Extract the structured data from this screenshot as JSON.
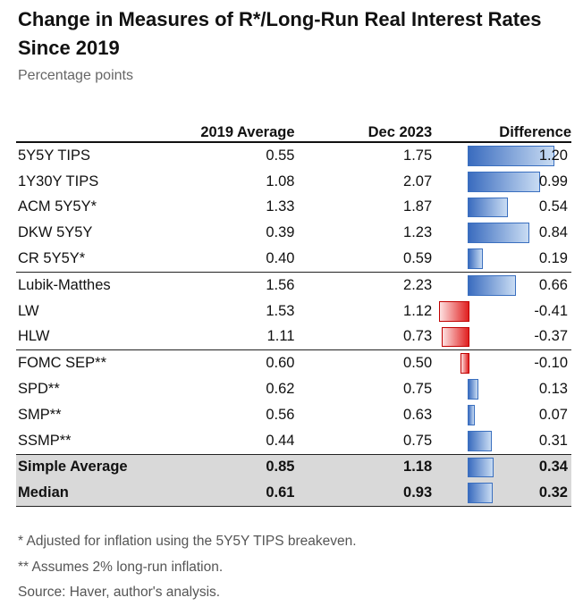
{
  "title": "Change in Measures of R*/Long-Run Real Interest Rates Since 2019",
  "subtitle": "Percentage points",
  "colors": {
    "positive_bar": "#3a6cbf",
    "negative_bar": "#e02020",
    "summary_fill": "#d9d9d9"
  },
  "chart_data": {
    "type": "table",
    "columns": [
      "",
      "2019 Average",
      "Dec 2023",
      "Difference"
    ],
    "rows": [
      {
        "label": "5Y5Y TIPS",
        "avg2019": "0.55",
        "dec2023": "1.75",
        "diff": "1.20",
        "diff_value": 1.2
      },
      {
        "label": "1Y30Y TIPS",
        "avg2019": "1.08",
        "dec2023": "2.07",
        "diff": "0.99",
        "diff_value": 0.99
      },
      {
        "label": "ACM 5Y5Y*",
        "avg2019": "1.33",
        "dec2023": "1.87",
        "diff": "0.54",
        "diff_value": 0.54
      },
      {
        "label": "DKW 5Y5Y",
        "avg2019": "0.39",
        "dec2023": "1.23",
        "diff": "0.84",
        "diff_value": 0.84
      },
      {
        "label": "CR 5Y5Y*",
        "avg2019": "0.40",
        "dec2023": "0.59",
        "diff": "0.19",
        "diff_value": 0.19
      },
      {
        "label": "Lubik-Matthes",
        "avg2019": "1.56",
        "dec2023": "2.23",
        "diff": "0.66",
        "diff_value": 0.66
      },
      {
        "label": "LW",
        "avg2019": "1.53",
        "dec2023": "1.12",
        "diff": "-0.41",
        "diff_value": -0.41
      },
      {
        "label": "HLW",
        "avg2019": "1.11",
        "dec2023": "0.73",
        "diff": "-0.37",
        "diff_value": -0.37
      },
      {
        "label": "FOMC SEP**",
        "avg2019": "0.60",
        "dec2023": "0.50",
        "diff": "-0.10",
        "diff_value": -0.1
      },
      {
        "label": "SPD**",
        "avg2019": "0.62",
        "dec2023": "0.75",
        "diff": "0.13",
        "diff_value": 0.13
      },
      {
        "label": "SMP**",
        "avg2019": "0.56",
        "dec2023": "0.63",
        "diff": "0.07",
        "diff_value": 0.07
      },
      {
        "label": "SSMP**",
        "avg2019": "0.44",
        "dec2023": "0.75",
        "diff": "0.31",
        "diff_value": 0.31
      },
      {
        "label": "Simple Average",
        "avg2019": "0.85",
        "dec2023": "1.18",
        "diff": "0.34",
        "diff_value": 0.34,
        "summary": true
      },
      {
        "label": "Median",
        "avg2019": "0.61",
        "dec2023": "0.93",
        "diff": "0.32",
        "diff_value": 0.32,
        "summary": true
      }
    ],
    "group_starts": [
      5,
      8
    ],
    "summary_start": 12,
    "diff_range": [
      -0.41,
      1.2
    ]
  },
  "notes": [
    "* Adjusted for inflation using the 5Y5Y TIPS breakeven.",
    "** Assumes 2% long-run inflation.",
    "Source: Haver, author's analysis."
  ]
}
